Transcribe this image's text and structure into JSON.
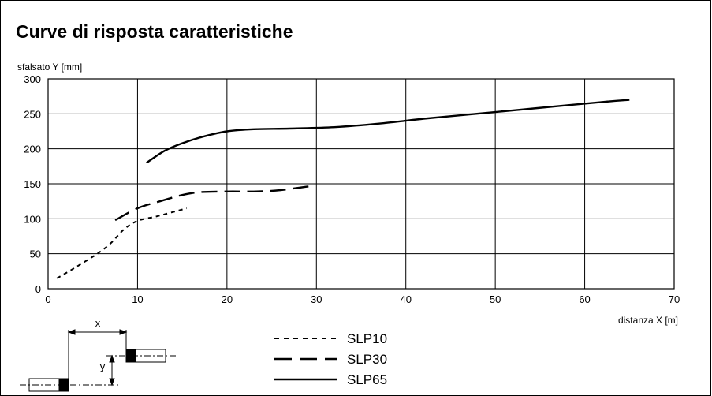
{
  "chart_data": {
    "type": "line",
    "title": "Curve di risposta caratteristiche",
    "xlabel": "distanza X [m]",
    "ylabel": "sfalsato Y [mm]",
    "xlim": [
      0,
      70
    ],
    "ylim": [
      0,
      300
    ],
    "xticks": [
      0,
      10,
      20,
      30,
      40,
      50,
      60,
      70
    ],
    "yticks": [
      0,
      50,
      100,
      150,
      200,
      250,
      300
    ],
    "grid": true,
    "legend_position": "bottom-center",
    "series": [
      {
        "name": "SLP10",
        "line_style": "dotted",
        "x": [
          1,
          3,
          5.5,
          7,
          8.5,
          10,
          12,
          13.5,
          15.5
        ],
        "y": [
          15,
          30,
          50,
          65,
          85,
          97,
          103,
          108,
          115
        ]
      },
      {
        "name": "SLP30",
        "line_style": "dashed",
        "x": [
          7.5,
          10,
          12.5,
          15,
          17,
          20,
          23,
          26,
          29.5
        ],
        "y": [
          98,
          115,
          125,
          134,
          138,
          139,
          139,
          141,
          147
        ]
      },
      {
        "name": "SLP65",
        "line_style": "solid",
        "x": [
          11,
          13,
          15,
          17.5,
          20,
          23,
          27,
          32,
          37,
          42,
          47,
          52,
          57,
          62,
          65
        ],
        "y": [
          180,
          197,
          208,
          218,
          225,
          228,
          229,
          231,
          236,
          243,
          249,
          255,
          261,
          267,
          270
        ]
      }
    ]
  },
  "diagram": {
    "x_label": "x",
    "y_label": "y"
  }
}
